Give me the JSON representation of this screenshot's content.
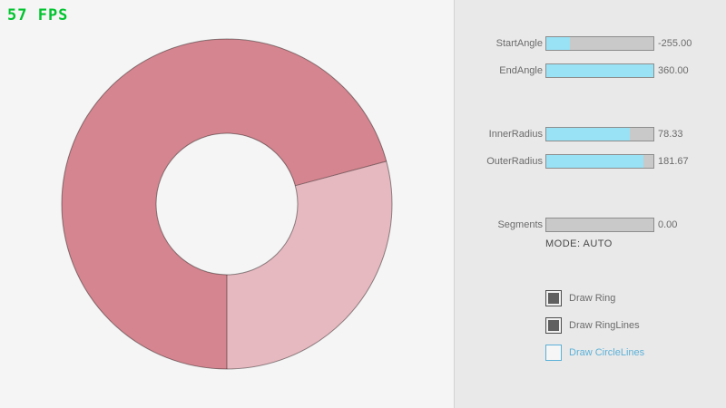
{
  "theme": {
    "accent": "#99e2f5",
    "accent_text": "#5cb1d8",
    "fps": "#00c42e",
    "ring_dark": "#d4858f",
    "ring_light": "#e6b8bf",
    "ring_line": "rgba(0,0,0,0.42)"
  },
  "fps": {
    "text": "57 FPS"
  },
  "controls": {
    "sliders": [
      {
        "label": "StartAngle",
        "value": "-255.00",
        "fill_pct": 21.7
      },
      {
        "label": "EndAngle",
        "value": "360.00",
        "fill_pct": 100
      },
      {
        "label": "InnerRadius",
        "value": "78.33",
        "fill_pct": 78.3
      },
      {
        "label": "OuterRadius",
        "value": "181.67",
        "fill_pct": 90.8
      },
      {
        "label": "Segments",
        "value": "0.00",
        "fill_pct": 0
      }
    ],
    "mode_text": "MODE: AUTO",
    "checkboxes": [
      {
        "label": "Draw Ring",
        "checked": true
      },
      {
        "label": "Draw RingLines",
        "checked": true
      },
      {
        "label": "Draw CircleLines",
        "checked": false
      }
    ]
  }
}
